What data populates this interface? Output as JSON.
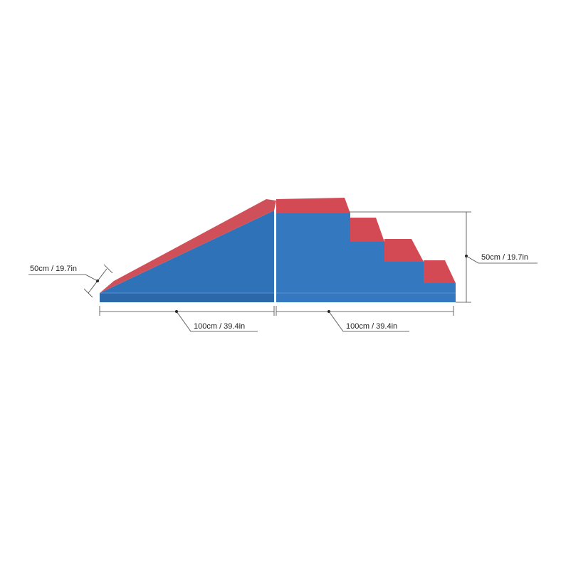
{
  "dimensions": {
    "depth": "50cm / 19.7in",
    "height": "50cm / 19.7in",
    "ramp_length": "100cm / 39.4in",
    "stairs_length": "100cm / 39.4in"
  }
}
